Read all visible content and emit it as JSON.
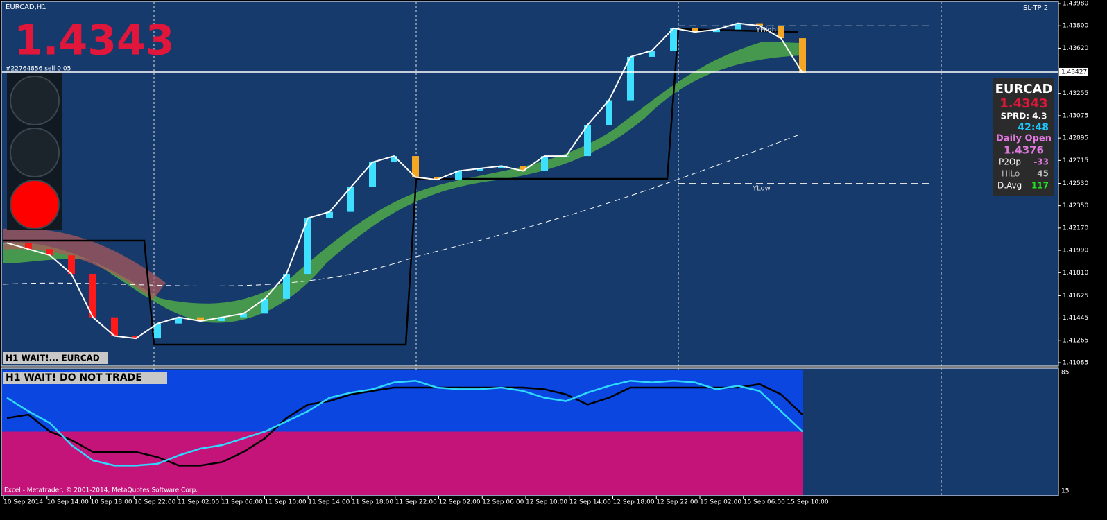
{
  "window": {
    "symbol_label": "EURCAD,H1",
    "ea_label": "SL-TP 2"
  },
  "big_price": "1.4343",
  "order_label": "#22764856 sell 0.05",
  "status_main": "H1 WAIT!... EURCAD",
  "status_sub": "H1  WAIT!  DO NOT TRADE",
  "copyright": "Excel - Metatrader, © 2001-2014, MetaQuotes Software Corp.",
  "price_chart": {
    "ylim": [
      1.41085,
      1.4398
    ],
    "yticks": [
      {
        "value": 1.4398,
        "label": "1.43980"
      },
      {
        "value": 1.438,
        "label": "1.43800"
      },
      {
        "value": 1.4362,
        "label": "1.43620"
      },
      1.43255,
      1.43075,
      1.42895,
      1.42715,
      {
        "value": 1.4253,
        "label": "1.42530"
      },
      {
        "value": 1.4235,
        "label": "1.42350"
      },
      {
        "value": 1.4217,
        "label": "1.42170"
      },
      {
        "value": 1.4199,
        "label": "1.41990"
      },
      {
        "value": 1.4181,
        "label": "1.41810"
      },
      1.41625,
      1.41445,
      1.41265,
      1.41085
    ],
    "current_price": 1.43427,
    "yhigh": {
      "label": "YHigh",
      "value": 1.438
    },
    "ylow": {
      "label": "YLow",
      "value": 1.4253
    },
    "time_labels": [
      "10 Sep 2014",
      "10 Sep 14:00",
      "10 Sep 18:00",
      "10 Sep 22:00",
      "11 Sep 02:00",
      "11 Sep 06:00",
      "11 Sep 10:00",
      "11 Sep 14:00",
      "11 Sep 18:00",
      "11 Sep 22:00",
      "12 Sep 02:00",
      "12 Sep 06:00",
      "12 Sep 10:00",
      "12 Sep 14:00",
      "12 Sep 18:00",
      "12 Sep 22:00",
      "15 Sep 02:00",
      "15 Sep 06:00",
      "15 Sep 10:00"
    ],
    "closes": [
      1.4205,
      1.42,
      1.4195,
      1.418,
      1.4145,
      1.413,
      1.4128,
      1.414,
      1.4145,
      1.4142,
      1.4145,
      1.4148,
      1.416,
      1.418,
      1.4225,
      1.423,
      1.425,
      1.427,
      1.4275,
      1.4258,
      1.4256,
      1.4263,
      1.4265,
      1.4267,
      1.4263,
      1.4275,
      1.4275,
      1.43,
      1.432,
      1.4355,
      1.436,
      1.4378,
      1.4375,
      1.4377,
      1.4382,
      1.438,
      1.437,
      1.4342
    ]
  },
  "oscillator": {
    "ylim": [
      15,
      85
    ],
    "yticks": [
      85,
      15
    ],
    "cyan": [
      70,
      62,
      55,
      42,
      33,
      30,
      30,
      31,
      36,
      40,
      42,
      46,
      50,
      56,
      62,
      70,
      73,
      75,
      79,
      80,
      76,
      75,
      75,
      76,
      74,
      70,
      68,
      73,
      77,
      80,
      79,
      80,
      79,
      75,
      77,
      74,
      62,
      50
    ],
    "black": [
      58,
      60,
      50,
      45,
      38,
      38,
      38,
      35,
      30,
      30,
      32,
      38,
      46,
      58,
      66,
      68,
      72,
      74,
      76,
      76,
      76,
      76,
      76,
      76,
      76,
      75,
      72,
      66,
      70,
      76,
      76,
      76,
      76,
      76,
      76,
      78,
      72,
      60
    ]
  },
  "info_box": {
    "symbol": "EURCAD",
    "price": "1.4343",
    "spread": "SPRD: 4.3",
    "timer": "42:48",
    "daily_open_label": "Daily Open",
    "daily_open": "1.4376",
    "rows": [
      [
        "P2Op",
        "-33"
      ],
      [
        "HiLo",
        "45"
      ],
      [
        "D.Avg",
        "117"
      ]
    ]
  }
}
